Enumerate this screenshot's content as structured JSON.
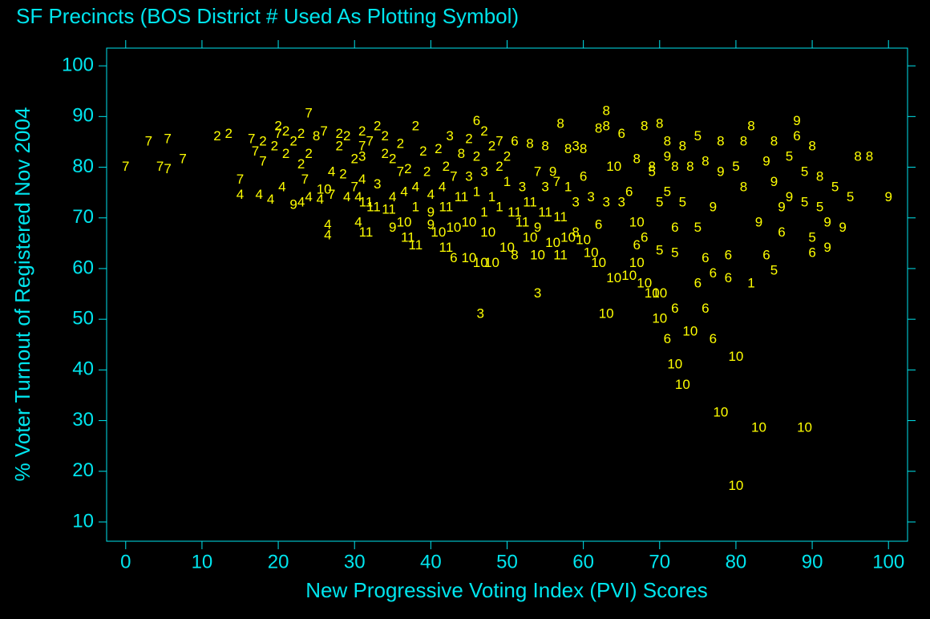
{
  "chart_data": {
    "type": "scatter",
    "title": "SF Precincts (BOS District # Used As Plotting Symbol)",
    "x_label": "New Progressive Voting Index (PVI) Scores",
    "y_label": "% Voter Turnout of Registered Nov 2004",
    "color": "#ffff00",
    "xlim": [
      -2.5,
      102.5
    ],
    "ylim": [
      6.2,
      103.5
    ],
    "xticks": [
      0,
      10,
      20,
      30,
      40,
      50,
      60,
      70,
      80,
      90,
      100
    ],
    "yticks": [
      10,
      20,
      30,
      40,
      50,
      60,
      70,
      80,
      90,
      100
    ],
    "x": [
      0,
      3,
      4.5,
      5.5,
      5.5,
      7.5,
      12,
      13.5,
      15,
      15,
      16.5,
      17,
      17.5,
      18,
      18,
      19,
      19.5,
      20,
      20,
      20.5,
      21,
      21,
      22,
      22,
      23,
      23,
      23,
      23.5,
      24,
      24,
      24,
      25,
      25.5,
      26,
      26,
      26.5,
      26.5,
      27,
      27,
      28,
      28,
      28.5,
      29,
      29,
      30,
      30,
      30.5,
      30.5,
      31,
      31,
      31,
      31,
      31.5,
      31.5,
      32,
      32.5,
      33,
      33,
      34,
      34,
      34.5,
      35,
      35,
      35,
      36,
      36,
      36.5,
      36.5,
      37,
      37,
      38,
      38,
      38,
      38,
      39,
      39.5,
      40,
      40,
      40,
      41,
      41,
      41.5,
      42,
      42,
      42,
      42.5,
      43,
      43,
      43,
      44,
      44,
      45,
      45,
      45,
      45,
      46,
      46,
      46,
      46.5,
      46.5,
      47,
      47,
      47,
      47.5,
      48,
      48,
      48,
      49,
      49,
      49,
      50,
      50,
      50,
      51,
      51,
      51,
      52,
      52,
      53,
      53,
      53,
      54,
      54,
      54,
      54,
      55,
      55,
      55,
      56,
      56,
      56.5,
      57,
      57,
      57,
      58,
      58,
      58,
      59,
      59,
      59,
      60,
      60,
      60,
      61,
      61,
      62,
      62,
      62,
      63,
      63,
      63,
      63,
      64,
      64,
      65,
      65,
      66,
      66,
      67,
      67,
      67,
      67,
      68,
      68,
      68,
      69,
      69,
      69,
      70,
      70,
      70,
      70,
      70,
      71,
      71,
      71,
      71,
      72,
      72,
      72,
      72,
      72,
      73,
      73,
      73,
      74,
      74,
      75,
      75,
      75,
      76,
      76,
      76,
      77,
      77,
      77,
      78,
      78,
      78,
      79,
      79,
      80,
      80,
      80,
      81,
      81,
      82,
      82,
      83,
      83,
      84,
      84,
      85,
      85,
      85,
      86,
      86,
      87,
      87,
      88,
      88,
      89,
      89,
      89,
      90,
      90,
      90,
      91,
      91,
      92,
      92,
      93,
      94,
      95,
      96,
      97.5,
      100
    ],
    "values": [
      80,
      85,
      80,
      85.5,
      79.5,
      81.5,
      86,
      86.5,
      77.5,
      74.5,
      85.5,
      83,
      74.5,
      85,
      81,
      73.5,
      84,
      88,
      86.5,
      76,
      82.5,
      87,
      85,
      72.5,
      86.5,
      80.5,
      73,
      77.5,
      82.5,
      74,
      90.5,
      86,
      73.5,
      87,
      75.5,
      68.5,
      66.5,
      79,
      74.5,
      84,
      86.5,
      78.5,
      86,
      74,
      81.5,
      76,
      74,
      69,
      87,
      84,
      82,
      77.5,
      73,
      67,
      85,
      72,
      76.5,
      88,
      82.5,
      86,
      71.5,
      81.5,
      74,
      68,
      79,
      84.5,
      75,
      69,
      79.5,
      66,
      64.5,
      88,
      76,
      72,
      83,
      79,
      71,
      74.5,
      68.5,
      67,
      83.5,
      76,
      80,
      72,
      64,
      86,
      78,
      68,
      62,
      82.5,
      74,
      85.5,
      78,
      69,
      62,
      89,
      82,
      75,
      61,
      51,
      87,
      79,
      71,
      67,
      84,
      74,
      61,
      85,
      80,
      72,
      82,
      77,
      64,
      85,
      71,
      62.5,
      76,
      69,
      84.5,
      73,
      66,
      79,
      68,
      62.5,
      55,
      84,
      76,
      71,
      79,
      65,
      77,
      88.5,
      70,
      62.5,
      83.5,
      76,
      66,
      84,
      73,
      67,
      83.5,
      78,
      65.5,
      74,
      63,
      87.5,
      68.5,
      61,
      88,
      91,
      73,
      51,
      58,
      80,
      73,
      86.5,
      75,
      58.5,
      81.5,
      64.5,
      69,
      61,
      88,
      66,
      57,
      80,
      79,
      55,
      88.5,
      73,
      63.5,
      55,
      50,
      85,
      82,
      75,
      46,
      80,
      68,
      63,
      41,
      52,
      84,
      73,
      37,
      80,
      47.5,
      86,
      68,
      57,
      81,
      62,
      52,
      72,
      59,
      46,
      85,
      79,
      31.5,
      62.5,
      58,
      80,
      17,
      42.5,
      85,
      76,
      88,
      57,
      69,
      28.5,
      81,
      62.5,
      85,
      77,
      59.5,
      72,
      67,
      82,
      74,
      89,
      86,
      79,
      73,
      28.5,
      84,
      66,
      63,
      78,
      72,
      69,
      64,
      76,
      68,
      74,
      82,
      82,
      74
    ],
    "point_labels": [
      "7",
      "7",
      "7",
      "7",
      "7",
      "7",
      "2",
      "2",
      "7",
      "4",
      "7",
      "7",
      "4",
      "2",
      "7",
      "4",
      "2",
      "2",
      "7",
      "4",
      "2",
      "2",
      "2",
      "9",
      "2",
      "2",
      "4",
      "7",
      "2",
      "4",
      "7",
      "8",
      "4",
      "7",
      "10",
      "4",
      "4",
      "4",
      "7",
      "2",
      "2",
      "2",
      "2",
      "4",
      "2",
      "7",
      "4",
      "4",
      "2",
      "7",
      "3",
      "4",
      "11",
      "11",
      "7",
      "11",
      "3",
      "2",
      "2",
      "2",
      "11",
      "2",
      "4",
      "9",
      "7",
      "2",
      "4",
      "10",
      "2",
      "11",
      "11",
      "2",
      "4",
      "1",
      "2",
      "2",
      "9",
      "4",
      "9",
      "10",
      "2",
      "4",
      "2",
      "11",
      "11",
      "3",
      "7",
      "10",
      "6",
      "8",
      "11",
      "2",
      "3",
      "10",
      "10",
      "6",
      "2",
      "1",
      "10",
      "3",
      "2",
      "3",
      "1",
      "10",
      "2",
      "1",
      "10",
      "7",
      "2",
      "1",
      "2",
      "1",
      "10",
      "6",
      "11",
      "8",
      "3",
      "11",
      "8",
      "11",
      "10",
      "7",
      "9",
      "10",
      "3",
      "8",
      "3",
      "11",
      "9",
      "10",
      "7",
      "8",
      "11",
      "11",
      "8",
      "1",
      "10",
      "3",
      "3",
      "8",
      "8",
      "6",
      "10",
      "3",
      "10",
      "8",
      "6",
      "10",
      "8",
      "8",
      "3",
      "10",
      "10",
      "10",
      "3",
      "6",
      "6",
      "10",
      "8",
      "6",
      "10",
      "10",
      "8",
      "6",
      "10",
      "8",
      "5",
      "10",
      "8",
      "5",
      "5",
      "10",
      "10",
      "8",
      "9",
      "5",
      "6",
      "8",
      "6",
      "5",
      "10",
      "6",
      "8",
      "5",
      "10",
      "8",
      "10",
      "5",
      "5",
      "6",
      "8",
      "6",
      "6",
      "9",
      "6",
      "6",
      "8",
      "9",
      "10",
      "6",
      "6",
      "5",
      "10",
      "10",
      "8",
      "8",
      "8",
      "1",
      "9",
      "10",
      "9",
      "6",
      "8",
      "9",
      "5",
      "9",
      "6",
      "5",
      "9",
      "9",
      "6",
      "5",
      "5",
      "10",
      "8",
      "5",
      "6",
      "8",
      "5",
      "9",
      "9",
      "5",
      "9",
      "5",
      "8",
      "8",
      "9"
    ]
  }
}
